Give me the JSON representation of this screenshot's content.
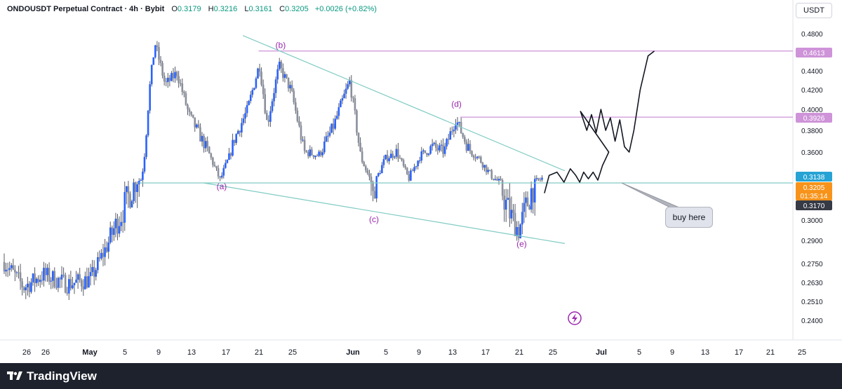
{
  "header": {
    "symbol": "ONDOUSDT Perpetual Contract · 4h · Bybit",
    "o_key": "O",
    "o_val": "0.3179",
    "h_key": "H",
    "h_val": "0.3216",
    "l_key": "L",
    "l_val": "0.3161",
    "c_key": "C",
    "c_val": "0.3205",
    "change": "+0.0026 (+0.82%)"
  },
  "currency": "USDT",
  "footer": {
    "brand": "TradingView",
    "logo_icon": "tradingview-logo-icon"
  },
  "annotation": {
    "buy_text": "buy here"
  },
  "colors": {
    "up": "#089981",
    "down": "#787b86",
    "body_up": "#2962ff",
    "trend": "#80cbc4",
    "level": "#ce93d8",
    "label": "#9c27b0"
  },
  "chart_data": {
    "type": "candlestick",
    "price_axis": {
      "ylim": [
        0.235,
        0.485
      ],
      "ticks": [
        "0.4800",
        "0.4400",
        "0.4200",
        "0.4000",
        "0.3800",
        "0.3600",
        "0.3000",
        "0.2900",
        "0.2750",
        "0.2630",
        "0.2510",
        "0.2400"
      ],
      "tick_values": [
        0.48,
        0.44,
        0.42,
        0.4,
        0.38,
        0.36,
        0.3,
        0.29,
        0.275,
        0.263,
        0.251,
        0.24
      ]
    },
    "time_axis": {
      "labels": [
        "26",
        "26",
        "May",
        "5",
        "9",
        "13",
        "17",
        "21",
        "25",
        "Jun",
        "5",
        "9",
        "13",
        "17",
        "21",
        "25",
        "Jul",
        "5",
        "9",
        "13",
        "17",
        "21",
        "25"
      ]
    },
    "price_badges": [
      {
        "text": "0.4613",
        "value": 0.4613,
        "color": "#ce93d8"
      },
      {
        "text": "0.3926",
        "value": 0.3926,
        "color": "#ce93d8"
      },
      {
        "text": "0.3138",
        "value": 0.3138,
        "color": "#26a3d4"
      },
      {
        "text": "0.3205",
        "value": 0.3205,
        "color": "#f7931a"
      },
      {
        "text": "01:35:14",
        "value": 0.3186,
        "color": "#f7931a"
      },
      {
        "text": "0.3170",
        "value": 0.317,
        "color": "#363a45"
      }
    ],
    "wave_labels": [
      {
        "text": "(a)",
        "value": 0.3115,
        "t": 0.277
      },
      {
        "text": "(b)",
        "value": 0.4646,
        "t": 0.352
      },
      {
        "text": "(c)",
        "value": 0.299,
        "t": 0.471
      },
      {
        "text": "(d)",
        "value": 0.4026,
        "t": 0.576
      },
      {
        "text": "(e)",
        "value": 0.286,
        "t": 0.659
      }
    ],
    "trendlines": [
      {
        "name": "upper",
        "from": {
          "t": 0.304,
          "v": 0.478
        },
        "to": {
          "t": 0.714,
          "v": 0.332
        }
      },
      {
        "name": "lower",
        "from": {
          "t": 0.254,
          "v": 0.3138
        },
        "to": {
          "t": 0.714,
          "v": 0.288
        }
      },
      {
        "name": "support",
        "from": {
          "t": 0.172,
          "v": 0.3138
        },
        "to": {
          "t": 1.0,
          "v": 0.3138
        }
      }
    ],
    "horizontal_levels": [
      {
        "value": 0.4613,
        "from_t": 0.324
      },
      {
        "value": 0.3926,
        "from_t": 0.581
      }
    ],
    "anchors": [
      {
        "t": 0.0,
        "v": 0.276
      },
      {
        "t": 0.025,
        "v": 0.26
      },
      {
        "t": 0.05,
        "v": 0.268
      },
      {
        "t": 0.08,
        "v": 0.262
      },
      {
        "t": 0.11,
        "v": 0.265
      },
      {
        "t": 0.14,
        "v": 0.296
      },
      {
        "t": 0.16,
        "v": 0.31
      },
      {
        "t": 0.175,
        "v": 0.32
      },
      {
        "t": 0.185,
        "v": 0.42
      },
      {
        "t": 0.192,
        "v": 0.47
      },
      {
        "t": 0.205,
        "v": 0.425
      },
      {
        "t": 0.22,
        "v": 0.438
      },
      {
        "t": 0.235,
        "v": 0.395
      },
      {
        "t": 0.26,
        "v": 0.36
      },
      {
        "t": 0.275,
        "v": 0.318
      },
      {
        "t": 0.292,
        "v": 0.37
      },
      {
        "t": 0.31,
        "v": 0.4
      },
      {
        "t": 0.325,
        "v": 0.447
      },
      {
        "t": 0.335,
        "v": 0.385
      },
      {
        "t": 0.35,
        "v": 0.445
      },
      {
        "t": 0.365,
        "v": 0.42
      },
      {
        "t": 0.382,
        "v": 0.36
      },
      {
        "t": 0.4,
        "v": 0.355
      },
      {
        "t": 0.42,
        "v": 0.385
      },
      {
        "t": 0.44,
        "v": 0.429
      },
      {
        "t": 0.455,
        "v": 0.35
      },
      {
        "t": 0.47,
        "v": 0.308
      },
      {
        "t": 0.485,
        "v": 0.35
      },
      {
        "t": 0.5,
        "v": 0.36
      },
      {
        "t": 0.515,
        "v": 0.32
      },
      {
        "t": 0.53,
        "v": 0.355
      },
      {
        "t": 0.545,
        "v": 0.365
      },
      {
        "t": 0.56,
        "v": 0.36
      },
      {
        "t": 0.575,
        "v": 0.391
      },
      {
        "t": 0.59,
        "v": 0.365
      },
      {
        "t": 0.605,
        "v": 0.35
      },
      {
        "t": 0.62,
        "v": 0.325
      },
      {
        "t": 0.64,
        "v": 0.305
      },
      {
        "t": 0.655,
        "v": 0.295
      },
      {
        "t": 0.67,
        "v": 0.31
      },
      {
        "t": 0.685,
        "v": 0.3205
      }
    ],
    "projection": [
      [
        0.688,
        0.31
      ],
      [
        0.694,
        0.325
      ],
      [
        0.704,
        0.33
      ],
      [
        0.713,
        0.315
      ],
      [
        0.721,
        0.335
      ],
      [
        0.728,
        0.325
      ],
      [
        0.733,
        0.315
      ],
      [
        0.738,
        0.33
      ],
      [
        0.744,
        0.32
      ],
      [
        0.75,
        0.33
      ],
      [
        0.756,
        0.318
      ],
      [
        0.762,
        0.34
      ],
      [
        0.766,
        0.35
      ],
      [
        0.77,
        0.36
      ],
      [
        0.734,
        0.398
      ],
      [
        0.742,
        0.38
      ],
      [
        0.748,
        0.395
      ],
      [
        0.754,
        0.378
      ],
      [
        0.76,
        0.4
      ],
      [
        0.766,
        0.38
      ],
      [
        0.772,
        0.392
      ],
      [
        0.778,
        0.37
      ],
      [
        0.784,
        0.39
      ],
      [
        0.79,
        0.365
      ],
      [
        0.796,
        0.36
      ],
      [
        0.802,
        0.38
      ],
      [
        0.81,
        0.42
      ],
      [
        0.82,
        0.456
      ],
      [
        0.828,
        0.4612
      ]
    ]
  }
}
